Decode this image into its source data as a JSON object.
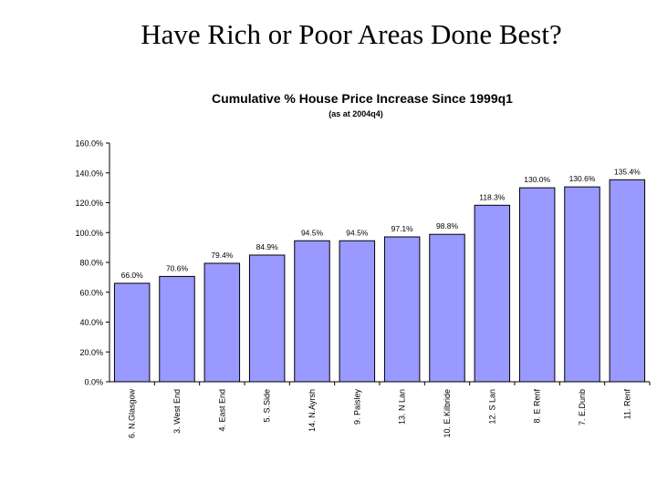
{
  "slide": {
    "title": "Have Rich or Poor Areas Done Best?"
  },
  "chart_data": {
    "type": "bar",
    "title": "Cumulative % House Price Increase Since 1999q1",
    "subtitle": "(as at 2004q4)",
    "xlabel": "",
    "ylabel": "",
    "ylim": [
      0,
      160
    ],
    "ytick_step": 20,
    "ytick_suffix": "%",
    "grid": false,
    "legend": "none",
    "bar_color": "#9999ff",
    "bar_edge_color": "#000000",
    "categories": [
      "6. N.Glasgow",
      "3. West End",
      "4. East End",
      "5. S.Side",
      "14. N.Ayrsh",
      "9. Paisley",
      "13. N Lan",
      "10. E.Kilbride",
      "12. S Lan",
      "8. E Renf",
      "7. E.Dunb",
      "11. Renf"
    ],
    "values": [
      66.0,
      70.6,
      79.4,
      84.9,
      94.5,
      94.5,
      97.1,
      98.8,
      118.3,
      130.0,
      130.6,
      135.4
    ]
  }
}
